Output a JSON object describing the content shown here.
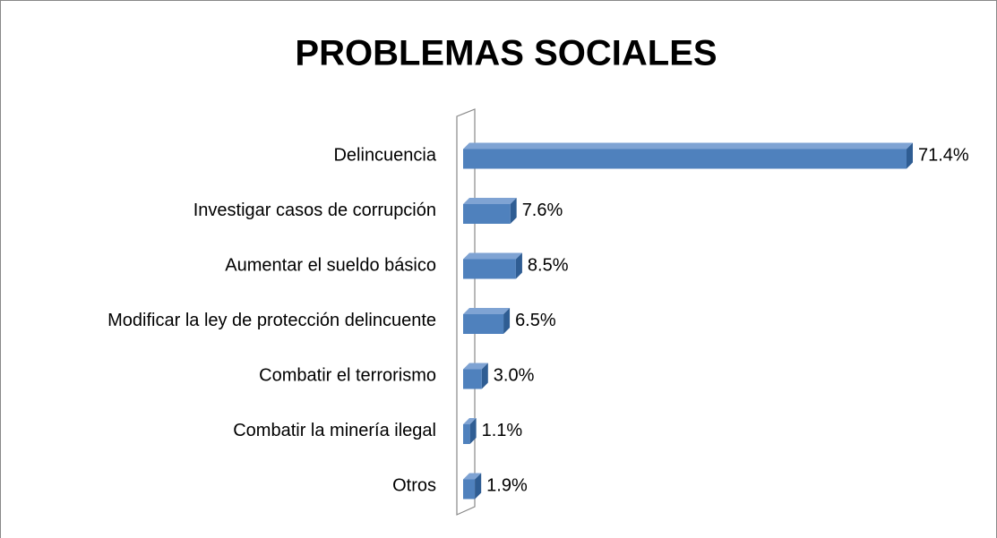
{
  "chart_data": {
    "type": "bar",
    "orientation": "horizontal",
    "title": "PROBLEMAS SOCIALES",
    "categories": [
      "Delincuencia",
      "Investigar casos de corrupción",
      "Aumentar el sueldo básico",
      "Modificar la ley de protección delincuente",
      "Combatir el terrorismo",
      "Combatir la minería ilegal",
      "Otros"
    ],
    "values": [
      71.4,
      7.6,
      8.5,
      6.5,
      3.0,
      1.1,
      1.9
    ],
    "value_labels": [
      "71.4%",
      "7.6%",
      "8.5%",
      "6.5%",
      "3.0%",
      "1.1%",
      "1.9%"
    ],
    "color": "#4f81bd"
  }
}
